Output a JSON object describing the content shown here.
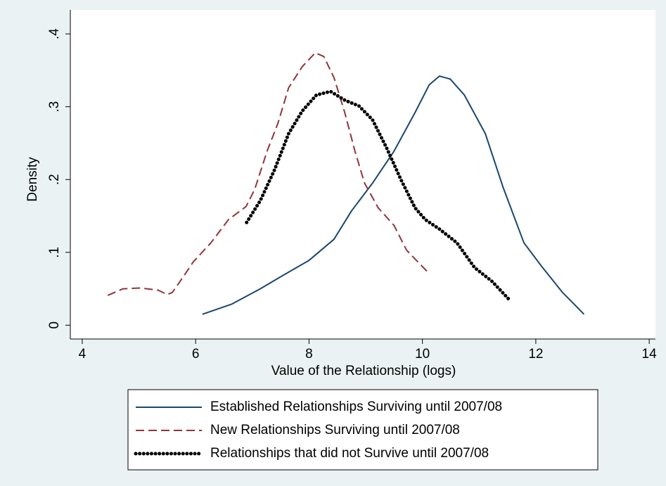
{
  "chart_data": {
    "type": "line",
    "xlabel": "Value of the Relationship (logs)",
    "ylabel": "Density",
    "xlim": [
      3.79,
      14.11
    ],
    "xticks": [
      4,
      6,
      8,
      10,
      12,
      14
    ],
    "ylim": [
      -0.019,
      0.433
    ],
    "yticks": [
      0,
      {
        "value": 0.1,
        "label": ".1"
      },
      {
        "value": 0.2,
        "label": ".2"
      },
      {
        "value": 0.3,
        "label": ".3"
      },
      {
        "value": 0.4,
        "label": ".4"
      }
    ],
    "series": [
      {
        "name": "Established Relationships Surviving until 2007/08",
        "color": "#1a476f",
        "style": "solid",
        "x": [
          6.12,
          6.64,
          7.14,
          7.51,
          8.0,
          8.44,
          8.75,
          9.12,
          9.5,
          9.87,
          10.12,
          10.3,
          10.49,
          10.74,
          11.11,
          11.42,
          11.79,
          12.1,
          12.47,
          12.85
        ],
        "values": [
          0.015,
          0.029,
          0.05,
          0.067,
          0.089,
          0.118,
          0.157,
          0.195,
          0.239,
          0.292,
          0.33,
          0.342,
          0.338,
          0.316,
          0.263,
          0.19,
          0.113,
          0.081,
          0.045,
          0.015
        ]
      },
      {
        "name": "New Relationships Surviving until 2007/08",
        "color": "#90353b",
        "style": "dash",
        "x": [
          4.45,
          4.72,
          5.03,
          5.34,
          5.5,
          5.59,
          5.77,
          5.96,
          6.27,
          6.58,
          6.89,
          7.04,
          7.26,
          7.45,
          7.64,
          7.88,
          8.11,
          8.26,
          8.44,
          8.63,
          8.81,
          8.98,
          9.22,
          9.5,
          9.72,
          10.08
        ],
        "values": [
          0.041,
          0.05,
          0.051,
          0.048,
          0.042,
          0.045,
          0.065,
          0.087,
          0.113,
          0.145,
          0.163,
          0.186,
          0.239,
          0.277,
          0.326,
          0.355,
          0.374,
          0.369,
          0.34,
          0.292,
          0.239,
          0.195,
          0.161,
          0.137,
          0.103,
          0.074
        ]
      },
      {
        "name": "Relationships that did not Survive until 2007/08",
        "color": "#000000",
        "style": "dot",
        "x": [
          6.9,
          7.14,
          7.39,
          7.64,
          7.88,
          8.13,
          8.38,
          8.63,
          8.88,
          9.12,
          9.37,
          9.62,
          9.87,
          10.05,
          10.3,
          10.61,
          10.92,
          11.23,
          11.52
        ],
        "values": [
          0.141,
          0.171,
          0.213,
          0.263,
          0.294,
          0.316,
          0.321,
          0.309,
          0.301,
          0.282,
          0.243,
          0.2,
          0.161,
          0.145,
          0.132,
          0.113,
          0.079,
          0.06,
          0.036
        ]
      }
    ]
  }
}
